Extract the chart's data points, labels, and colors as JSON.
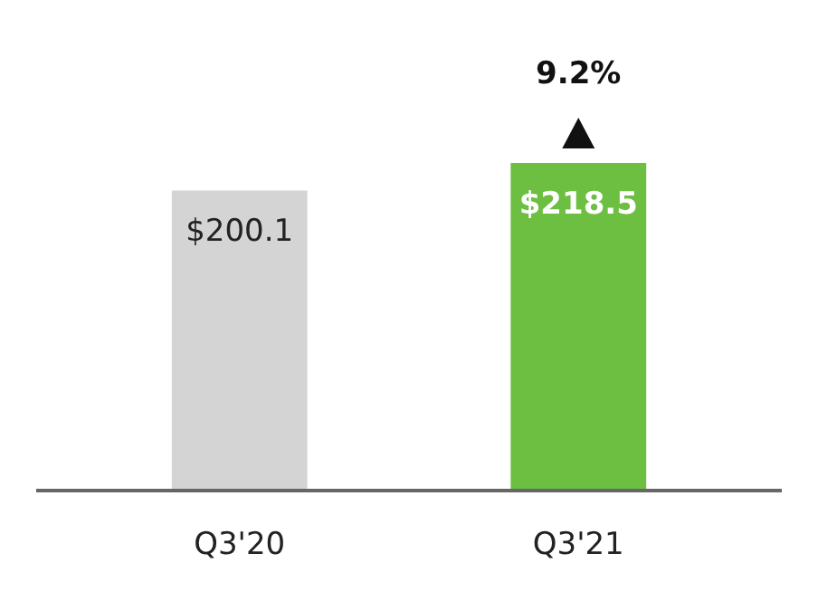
{
  "chart_data": {
    "type": "bar",
    "categories": [
      "Q3'20",
      "Q3'21"
    ],
    "values": [
      200.1,
      218.5
    ],
    "colors": [
      "#d4d4d4",
      "#6cbf40"
    ],
    "value_labels": [
      "$200.1",
      "$218.5"
    ],
    "annotations": [
      {
        "text": "9.2%",
        "x": "Q3'21",
        "y": 218.5
      }
    ]
  }
}
